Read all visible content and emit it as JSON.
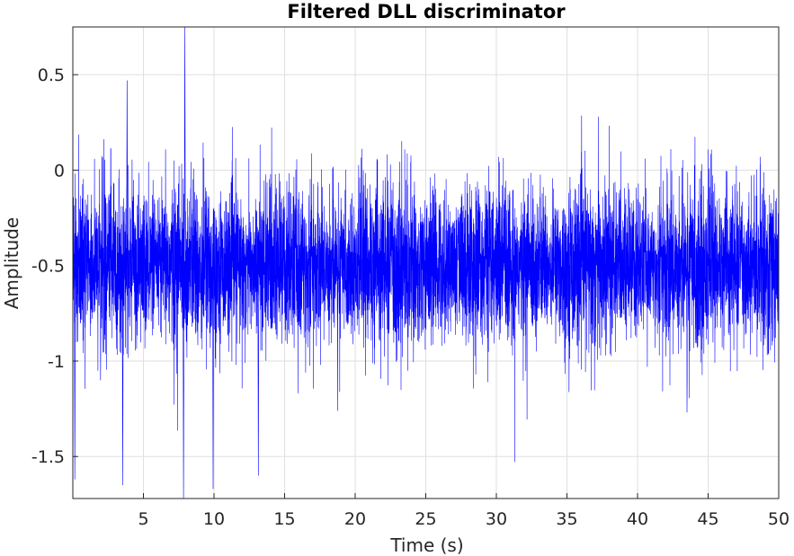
{
  "chart_data": {
    "type": "line",
    "title": "Filtered DLL discriminator",
    "xlabel": "Time (s)",
    "ylabel": "Amplitude",
    "xlim": [
      0,
      50
    ],
    "ylim": [
      -1.72,
      0.75
    ],
    "grid": true,
    "x_ticks": [
      5,
      10,
      15,
      20,
      25,
      30,
      35,
      40,
      45,
      50
    ],
    "x_tick_labels": [
      "5",
      "10",
      "15",
      "20",
      "25",
      "30",
      "35",
      "40",
      "45",
      "50"
    ],
    "y_ticks": [
      -1.5,
      -1,
      -0.5,
      0,
      0.5
    ],
    "y_tick_labels": [
      "-1.5",
      "-1",
      "-0.5",
      "0",
      "0.5"
    ],
    "series": [
      {
        "color": "#0000ff",
        "x_start": 0,
        "x_end": 50,
        "mean": -0.5,
        "std": 0.2,
        "extremes": [
          {
            "x": 7.9,
            "y": 0.75
          },
          {
            "x": 3.8,
            "y": 0.47
          },
          {
            "x": 0.1,
            "y": -1.62
          },
          {
            "x": 3.5,
            "y": -1.65
          },
          {
            "x": 7.8,
            "y": -1.72
          },
          {
            "x": 9.9,
            "y": -1.67
          },
          {
            "x": 13.1,
            "y": -1.6
          },
          {
            "x": 20.6,
            "y": -0.23
          }
        ]
      }
    ]
  }
}
